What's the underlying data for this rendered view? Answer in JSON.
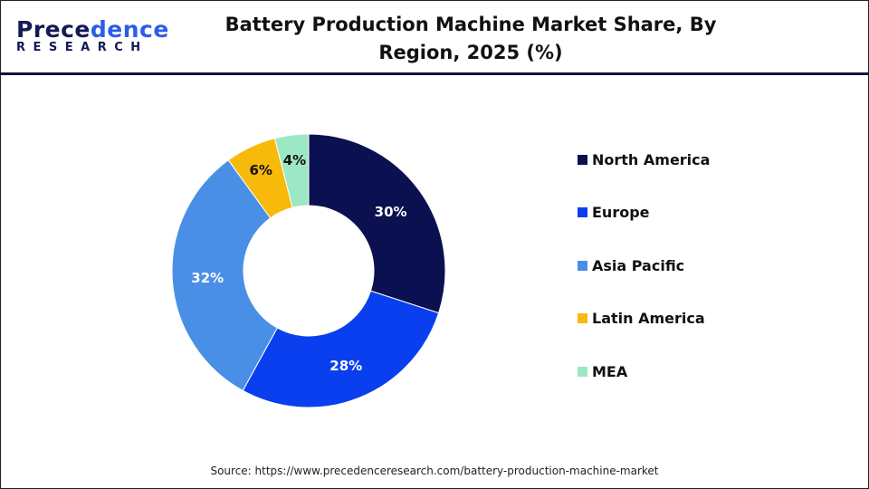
{
  "logo": {
    "line1_a": "Prece",
    "line1_b": "dence",
    "line2": "RESEARCH"
  },
  "title": "Battery Production Machine Market Share, By Region, 2025 (%)",
  "source": "Source: https://www.precedenceresearch.com/battery-production-machine-market",
  "chart_data": {
    "type": "pie",
    "subtype": "donut",
    "title": "Battery Production Machine Market Share, By Region, 2025 (%)",
    "categories": [
      "North America",
      "Europe",
      "Asia Pacific",
      "Latin America",
      "MEA"
    ],
    "values": [
      30,
      28,
      32,
      6,
      4
    ],
    "labels": [
      "30%",
      "28%",
      "32%",
      "6%",
      "4%"
    ],
    "colors": [
      "#0b1050",
      "#0a3ff0",
      "#4a8fe6",
      "#f7b90a",
      "#9de8c4"
    ],
    "legend_position": "right",
    "start_angle": "top, clockwise"
  }
}
